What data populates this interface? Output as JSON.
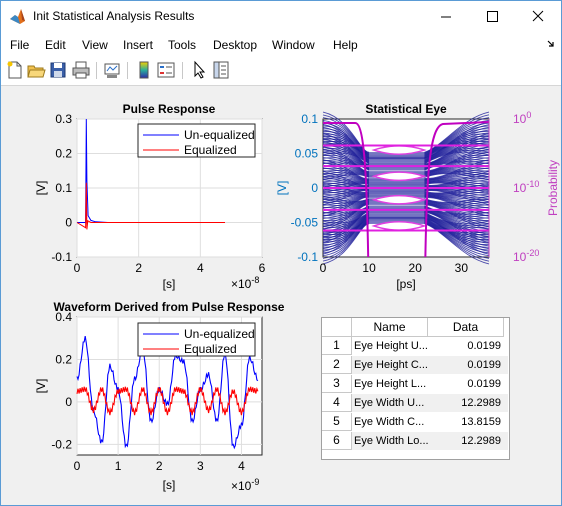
{
  "window": {
    "title": "Init Statistical Analysis Results"
  },
  "menu": [
    "File",
    "Edit",
    "View",
    "Insert",
    "Tools",
    "Desktop",
    "Window",
    "Help"
  ],
  "toolbar_icons": [
    "new-figure-icon",
    "open-file-icon",
    "save-icon",
    "print-icon",
    "link-plot-icon",
    "insert-colorbar-icon",
    "insert-legend-icon",
    "edit-plot-arrow-icon",
    "property-inspector-icon"
  ],
  "colors": {
    "unequalized": "#0000ff",
    "equalized": "#ff0000",
    "eye_axis": "#0072bd",
    "probability": "#c040c0",
    "eye_bg": "#ffffff"
  },
  "plots": {
    "pulse": {
      "title": "Pulse Response",
      "xlabel": "[s]",
      "ylabel": "[V]",
      "exponent": "×10",
      "exponent_power": "-8",
      "xticks": [
        "0",
        "2",
        "4",
        "6"
      ],
      "yticks": [
        "-0.1",
        "0",
        "0.1",
        "0.2",
        "0.3"
      ],
      "legend": [
        "Un-equalized",
        "Equalized"
      ]
    },
    "eye": {
      "title": "Statistical Eye",
      "xlabel": "[ps]",
      "ylabel": "[V]",
      "y2label": "Probability",
      "xticks": [
        "0",
        "10",
        "20",
        "30"
      ],
      "yticks": [
        "-0.1",
        "-0.05",
        "0",
        "0.05",
        "0.1"
      ],
      "y2ticks": [
        {
          "base": "10",
          "power": "0"
        },
        {
          "base": "10",
          "power": "-10"
        },
        {
          "base": "10",
          "power": "-20"
        }
      ]
    },
    "waveform": {
      "title": "Waveform Derived from Pulse Response",
      "xlabel": "[s]",
      "ylabel": "[V]",
      "exponent": "×10",
      "exponent_power": "-9",
      "xticks": [
        "0",
        "1",
        "2",
        "3",
        "4"
      ],
      "yticks": [
        "-0.2",
        "0",
        "0.2",
        "0.4"
      ],
      "legend": [
        "Un-equalized",
        "Equalized"
      ]
    }
  },
  "chart_data": [
    {
      "type": "line",
      "title": "Pulse Response",
      "xlabel": "[s]",
      "ylabel": "[V]",
      "xlim": [
        0,
        6e-08
      ],
      "ylim": [
        -0.1,
        0.3
      ],
      "series": [
        {
          "name": "Un-equalized",
          "x": [
            0,
            2.8e-09,
            3e-09,
            3.2e-09,
            3.6e-09,
            4.5e-09,
            6e-09,
            1e-08,
            4.8e-08
          ],
          "y": [
            0,
            0,
            0.3,
            0.12,
            0.02,
            0.006,
            0.002,
            0,
            0
          ]
        },
        {
          "name": "Equalized",
          "x": [
            0,
            2.8e-09,
            3e-09,
            3.2e-09,
            3.5e-09,
            4.5e-09,
            1e-08,
            4.8e-08
          ],
          "y": [
            0,
            -0.015,
            0.115,
            -0.02,
            0.005,
            0,
            0,
            0
          ]
        }
      ]
    },
    {
      "type": "heatmap",
      "title": "Statistical Eye",
      "xlabel": "[ps]",
      "ylabel": "[V]",
      "xlim": [
        0,
        36
      ],
      "ylim": [
        -0.1,
        0.1
      ],
      "y2label": "Probability",
      "y2lim": [
        "1e-20",
        "1e0"
      ],
      "y2scale": "log",
      "contour_lines_v": [
        0.07,
        0.036,
        0.0,
        -0.036,
        -0.07
      ],
      "eye_openings": [
        {
          "center_ps": 17.5,
          "width_ps": 12.3
        }
      ]
    },
    {
      "type": "line",
      "title": "Waveform Derived from Pulse Response",
      "xlabel": "[s]",
      "ylabel": "[V]",
      "xlim": [
        0,
        4.5e-09
      ],
      "ylim": [
        -0.25,
        0.4
      ],
      "series": [
        {
          "name": "Un-equalized",
          "x": [
            0,
            2e-10,
            4e-10,
            6e-10,
            8e-10,
            1e-09,
            1.2e-09,
            1.4e-09,
            1.6e-09,
            1.8e-09,
            2e-09,
            2.2e-09,
            2.4e-09,
            2.6e-09,
            2.8e-09,
            3e-09,
            3.2e-09,
            3.4e-09,
            3.6e-09,
            3.8e-09,
            4e-09,
            4.2e-09,
            4.4e-09
          ],
          "y": [
            0.1,
            0.29,
            -0.05,
            -0.2,
            0.16,
            0.05,
            -0.22,
            0.1,
            0.24,
            -0.1,
            0.05,
            -0.02,
            0.21,
            0.18,
            -0.1,
            0.05,
            0.12,
            -0.1,
            0.22,
            -0.22,
            -0.12,
            0.2,
            0.1
          ]
        },
        {
          "name": "Equalized",
          "x": [
            0,
            2e-10,
            4e-10,
            6e-10,
            8e-10,
            1e-09,
            1.2e-09,
            1.4e-09,
            1.6e-09,
            1.8e-09,
            2e-09,
            2.2e-09,
            2.4e-09,
            2.6e-09,
            2.8e-09,
            3e-09,
            3.2e-09,
            3.4e-09,
            3.6e-09,
            3.8e-09,
            4e-09,
            4.2e-09,
            4.4e-09
          ],
          "y": [
            0.05,
            0.06,
            -0.04,
            0.06,
            -0.05,
            0.05,
            0.06,
            -0.05,
            0.06,
            -0.05,
            0.06,
            -0.05,
            0.06,
            0.05,
            -0.05,
            0.06,
            -0.04,
            0.06,
            -0.05,
            0.05,
            -0.05,
            0.06,
            0.05
          ]
        }
      ]
    }
  ],
  "table": {
    "columns": [
      "Name",
      "Data"
    ],
    "rows": [
      {
        "n": "1",
        "name": "Eye Height U...",
        "value": "0.0199"
      },
      {
        "n": "2",
        "name": "Eye Height C...",
        "value": "0.0199"
      },
      {
        "n": "3",
        "name": "Eye Height L...",
        "value": "0.0199"
      },
      {
        "n": "4",
        "name": "Eye Width U...",
        "value": "12.2989"
      },
      {
        "n": "5",
        "name": "Eye Width C...",
        "value": "13.8159"
      },
      {
        "n": "6",
        "name": "Eye Width Lo...",
        "value": "12.2989"
      }
    ]
  }
}
